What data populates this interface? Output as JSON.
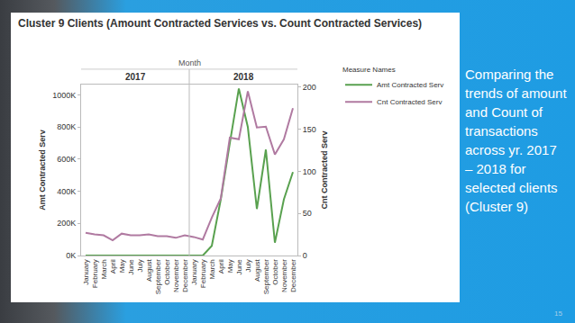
{
  "chart_data": {
    "type": "line",
    "title": "Cluster 9 Clients (Amount Contracted Services vs. Count Contracted Services)",
    "x_label": "Month",
    "x_groups": [
      "2017",
      "2018"
    ],
    "categories": [
      "January",
      "February",
      "March",
      "April",
      "May",
      "June",
      "July",
      "August",
      "September",
      "October",
      "November",
      "December",
      "January",
      "February",
      "March",
      "April",
      "May",
      "June",
      "July",
      "August",
      "September",
      "October",
      "November",
      "December"
    ],
    "series": [
      {
        "name": "Amt Contracted Serv",
        "color": "#59a14f",
        "axis": "y",
        "values": [
          0,
          0,
          0,
          0,
          0,
          0,
          0,
          0,
          0,
          0,
          0,
          0,
          0,
          0,
          60000,
          350000,
          700000,
          1040000,
          800000,
          290000,
          660000,
          80000,
          350000,
          520000
        ]
      },
      {
        "name": "Cnt Contracted Serv",
        "color": "#b07aa1",
        "axis": "y2",
        "values": [
          27,
          25,
          24,
          18,
          26,
          24,
          24,
          25,
          23,
          23,
          21,
          24,
          22,
          19,
          45,
          68,
          140,
          138,
          195,
          152,
          153,
          120,
          138,
          175
        ]
      }
    ],
    "y_label": "Amt Contracted Serv",
    "y2_label": "Cnt Contracted Serv",
    "ylim": [
      0,
      1065000
    ],
    "yticks": [
      {
        "value": 0,
        "label": "0K"
      },
      {
        "value": 200000,
        "label": "200K"
      },
      {
        "value": 400000,
        "label": "400K"
      },
      {
        "value": 600000,
        "label": "600K"
      },
      {
        "value": 800000,
        "label": "800K"
      },
      {
        "value": 1000000,
        "label": "1000K"
      }
    ],
    "y2lim": [
      0,
      203
    ],
    "y2ticks": [
      0,
      50,
      100,
      150,
      200
    ],
    "legend": "right",
    "legend_title": "Measure Names",
    "grid": false
  },
  "caption": "Comparing the trends of amount and Count of transactions across yr. 2017 – 2018 for selected clients (Cluster 9)",
  "page_number": "15"
}
